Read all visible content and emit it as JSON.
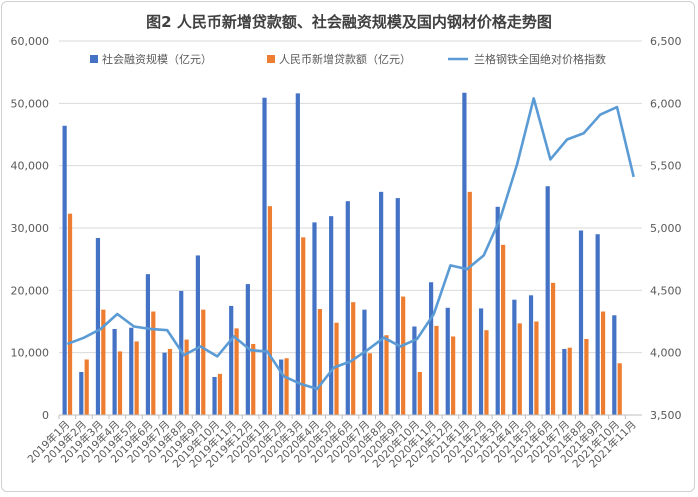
{
  "chart_data": {
    "type": "bar+line",
    "title": "图2 人民币新增贷款额、社会融资规模及国内钢材价格走势图",
    "categories": [
      "2019年1月",
      "2019年2月",
      "2019年3月",
      "2019年4月",
      "2019年5月",
      "2019年6月",
      "2019年7月",
      "2019年8月",
      "2019年9月",
      "2019年10月",
      "2019年11月",
      "2019年12月",
      "2020年1月",
      "2020年2月",
      "2020年3月",
      "2020年4月",
      "2020年5月",
      "2020年6月",
      "2020年7月",
      "2020年8月",
      "2020年9月",
      "2020年10月",
      "2020年11月",
      "2020年12月",
      "2021年1月",
      "2021年2月",
      "2021年3月",
      "2021年4月",
      "2021年5月",
      "2021年6月",
      "2021年7月",
      "2021年8月",
      "2021年9月",
      "2021年10月",
      "2021年11月"
    ],
    "series": [
      {
        "name": "社会融资规模（亿元）",
        "type": "bar",
        "axis": "left",
        "color": "#4472c4",
        "values": [
          46400,
          6900,
          28400,
          13800,
          14000,
          22600,
          10000,
          19900,
          25600,
          6100,
          17500,
          21000,
          50900,
          8900,
          51600,
          30900,
          31900,
          34300,
          16900,
          35800,
          34800,
          14200,
          21300,
          17200,
          51700,
          17100,
          33400,
          18500,
          19200,
          36700,
          10600,
          29600,
          29000,
          16000,
          null
        ]
      },
      {
        "name": "人民币新增贷款额（亿元）",
        "type": "bar",
        "axis": "left",
        "color": "#ed7d31",
        "values": [
          32300,
          8900,
          16900,
          10200,
          11800,
          16600,
          10600,
          12100,
          16900,
          6600,
          13900,
          11400,
          33500,
          9100,
          28500,
          17000,
          14800,
          18100,
          9900,
          12800,
          19000,
          6900,
          14300,
          12600,
          35800,
          13600,
          27300,
          14700,
          15000,
          21200,
          10800,
          12200,
          16600,
          8300,
          null
        ]
      },
      {
        "name": "兰格钢铁全国绝对价格指数",
        "type": "line",
        "axis": "right",
        "color": "#5b9bd5",
        "values": [
          4070,
          4120,
          4190,
          4310,
          4210,
          4190,
          4180,
          3980,
          4050,
          3970,
          4130,
          4020,
          4010,
          3810,
          3750,
          3710,
          3880,
          3930,
          4020,
          4120,
          4050,
          4110,
          4310,
          4700,
          4670,
          4780,
          5080,
          5510,
          6040,
          5550,
          5710,
          5760,
          5910,
          5970,
          5410
        ]
      }
    ],
    "y_left": {
      "range": [
        0,
        60000
      ],
      "ticks": [
        "0",
        "10,000",
        "20,000",
        "30,000",
        "40,000",
        "50,000",
        "60,000"
      ]
    },
    "y_right": {
      "range": [
        3500,
        6500
      ],
      "ticks": [
        "3,500",
        "4,000",
        "4,500",
        "5,000",
        "5,500",
        "6,000",
        "6,500"
      ]
    },
    "grid": true,
    "legend": "top"
  }
}
